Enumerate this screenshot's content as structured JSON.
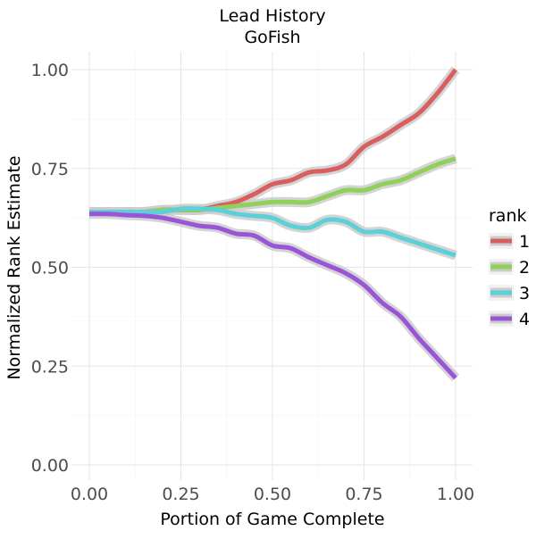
{
  "chart_data": {
    "type": "line",
    "title": "Lead History",
    "subtitle": "GoFish",
    "xlabel": "Portion of Game Complete",
    "ylabel": "Normalized Rank Estimate",
    "xlim": [
      0.0,
      1.0
    ],
    "ylim": [
      0.0,
      1.0
    ],
    "x_ticks": [
      "0.00",
      "0.25",
      "0.50",
      "0.75",
      "1.00"
    ],
    "y_ticks": [
      "0.00",
      "0.25",
      "0.50",
      "0.75",
      "1.00"
    ],
    "grid": true,
    "legend": {
      "title": "rank",
      "position": "right"
    },
    "x": [
      0.0,
      0.05,
      0.1,
      0.15,
      0.2,
      0.25,
      0.3,
      0.35,
      0.4,
      0.45,
      0.5,
      0.55,
      0.6,
      0.65,
      0.7,
      0.75,
      0.8,
      0.85,
      0.9,
      0.95,
      1.0
    ],
    "series": [
      {
        "name": "1",
        "color": "#d95f5f",
        "values": [
          0.64,
          0.64,
          0.64,
          0.64,
          0.645,
          0.645,
          0.645,
          0.655,
          0.665,
          0.685,
          0.71,
          0.72,
          0.74,
          0.745,
          0.76,
          0.805,
          0.83,
          0.86,
          0.89,
          0.94,
          1.0
        ]
      },
      {
        "name": "2",
        "color": "#8fd05a",
        "values": [
          0.64,
          0.64,
          0.64,
          0.64,
          0.645,
          0.645,
          0.645,
          0.65,
          0.655,
          0.66,
          0.665,
          0.665,
          0.665,
          0.68,
          0.695,
          0.695,
          0.71,
          0.72,
          0.74,
          0.76,
          0.775
        ]
      },
      {
        "name": "3",
        "color": "#5bd0d7",
        "values": [
          0.64,
          0.64,
          0.64,
          0.64,
          0.64,
          0.648,
          0.648,
          0.645,
          0.635,
          0.63,
          0.625,
          0.605,
          0.6,
          0.62,
          0.615,
          0.59,
          0.59,
          0.575,
          0.56,
          0.545,
          0.53
        ]
      },
      {
        "name": "4",
        "color": "#9a55d6",
        "values": [
          0.635,
          0.635,
          0.632,
          0.63,
          0.625,
          0.615,
          0.605,
          0.6,
          0.585,
          0.58,
          0.555,
          0.548,
          0.525,
          0.505,
          0.485,
          0.455,
          0.41,
          0.375,
          0.32,
          0.27,
          0.22
        ]
      }
    ],
    "band_color": "#cccccc"
  }
}
